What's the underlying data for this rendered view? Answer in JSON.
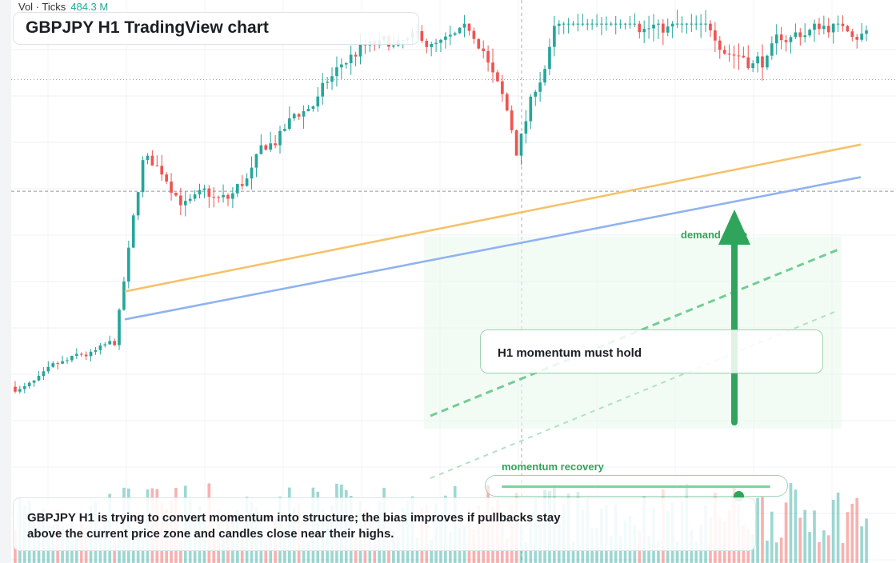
{
  "title": "GBPJPY H1 TradingView chart",
  "volume_indicator": {
    "label": "Vol · Ticks",
    "value": "484.3 M"
  },
  "annotations": {
    "note": "H1 momentum must hold",
    "demand_label": "demand zone",
    "momentum_label": "momentum recovery",
    "caption": "GBPJPY H1 is trying to convert momentum into structure; the bias improves if pullbacks stay above the current price zone and candles close near their highs."
  },
  "slider": {
    "value": 0.88
  },
  "colors": {
    "up": "#26a69a",
    "down": "#ef5350",
    "trend_orange": "#f5c26b",
    "trend_blue": "#8fb3f0",
    "accent_green": "#2ea55a"
  },
  "chart_data": {
    "type": "candlestick",
    "title": "GBPJPY H1 TradingView chart",
    "price_range": [
      0,
      100
    ],
    "seed": 7,
    "segments": [
      {
        "bars": 22,
        "drift": 0.05,
        "noise": 1.1
      },
      {
        "bars": 6,
        "drift": 6.2,
        "noise": 1.4
      },
      {
        "bars": 18,
        "drift": -0.6,
        "noise": 2.0
      },
      {
        "bars": 28,
        "drift": 0.9,
        "noise": 2.2
      },
      {
        "bars": 26,
        "drift": -0.45,
        "noise": 1.8
      },
      {
        "bars": 7,
        "drift": -3.5,
        "noise": 2.6
      },
      {
        "bars": 25,
        "drift": 3.1,
        "noise": 2.2
      },
      {
        "bars": 30,
        "drift": 0.15,
        "noise": 2.6
      },
      {
        "bars": 19,
        "drift": 0.5,
        "noise": 2.2
      }
    ],
    "trendlines": [
      {
        "name": "orange",
        "from": [
          0.0,
          40.5
        ],
        "to": [
          1.0,
          72
        ]
      },
      {
        "name": "blue",
        "from": [
          0.0,
          34.5
        ],
        "to": [
          1.0,
          65
        ]
      }
    ],
    "levels": [
      86,
      62
    ],
    "volume_axis": "Vol · Ticks"
  }
}
